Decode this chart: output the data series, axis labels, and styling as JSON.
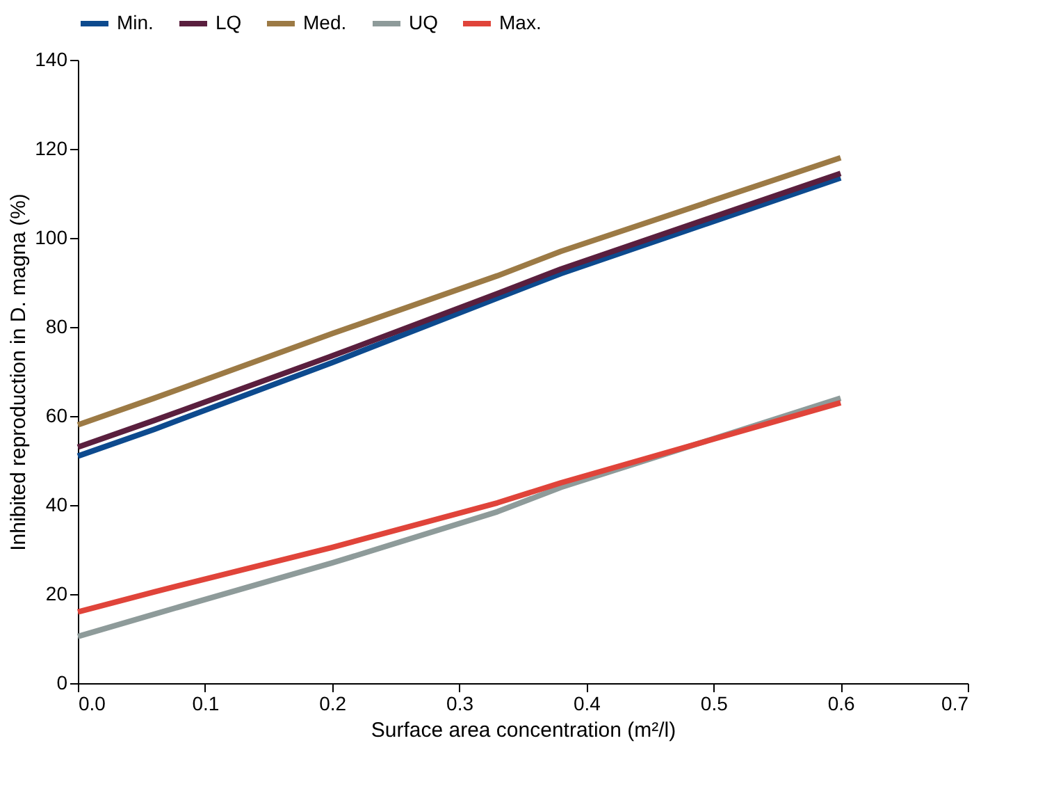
{
  "chart_data": {
    "type": "line",
    "xlabel": "Surface area concentration (m²/l)",
    "ylabel": "Inhibited reproduction in D. magna (%)",
    "x": [
      0,
      0.06,
      0.2,
      0.33,
      0.38,
      0.6
    ],
    "series": [
      {
        "name": "Min.",
        "color": "#0d4a8e",
        "values": [
          51,
          57,
          72,
          86.5,
          92,
          113.5
        ]
      },
      {
        "name": "LQ",
        "color": "#5a1f3e",
        "values": [
          53,
          59,
          73.5,
          87.5,
          93,
          114.5
        ]
      },
      {
        "name": "Med.",
        "color": "#9c7a45",
        "values": [
          58,
          64,
          78.5,
          91.5,
          97,
          118
        ]
      },
      {
        "name": "UQ",
        "color": "#8e9b9a",
        "values": [
          10.5,
          15.5,
          27,
          38.5,
          44,
          64
        ]
      },
      {
        "name": "Max.",
        "color": "#e0443a",
        "values": [
          16,
          20.5,
          30.5,
          40.5,
          45,
          63
        ]
      }
    ],
    "xlim": [
      0,
      0.7
    ],
    "xticks": [
      {
        "value": 0,
        "label": "0.0"
      },
      0.1,
      0.2,
      0.3,
      0.4,
      0.5,
      0.6,
      0.7
    ],
    "ylim": [
      0,
      140
    ],
    "yticks": [
      0,
      20,
      40,
      60,
      80,
      100,
      120,
      140
    ],
    "grid": false,
    "legend": "top",
    "marker": "none",
    "line_style": "solid"
  }
}
